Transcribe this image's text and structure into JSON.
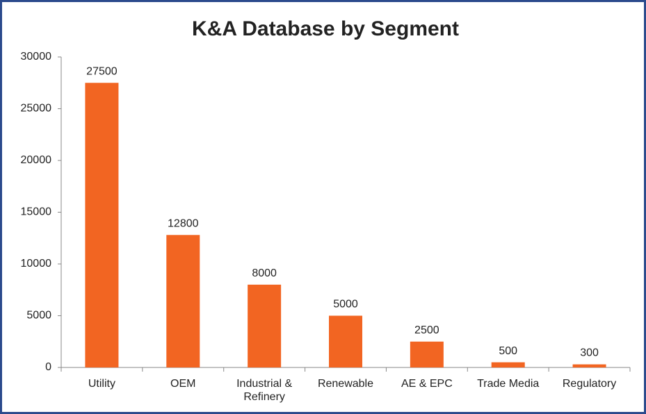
{
  "chart_data": {
    "type": "bar",
    "title": "K&A Database by Segment",
    "categories": [
      "Utility",
      "OEM",
      "Industrial & Refinery",
      "Renewable",
      "AE & EPC",
      "Trade Media",
      "Regulatory"
    ],
    "values": [
      27500,
      12800,
      8000,
      5000,
      2500,
      500,
      300
    ],
    "color": "#f26522",
    "ylim": [
      0,
      30000
    ],
    "yticks": [
      0,
      5000,
      10000,
      15000,
      20000,
      25000,
      30000
    ],
    "grid": false
  }
}
